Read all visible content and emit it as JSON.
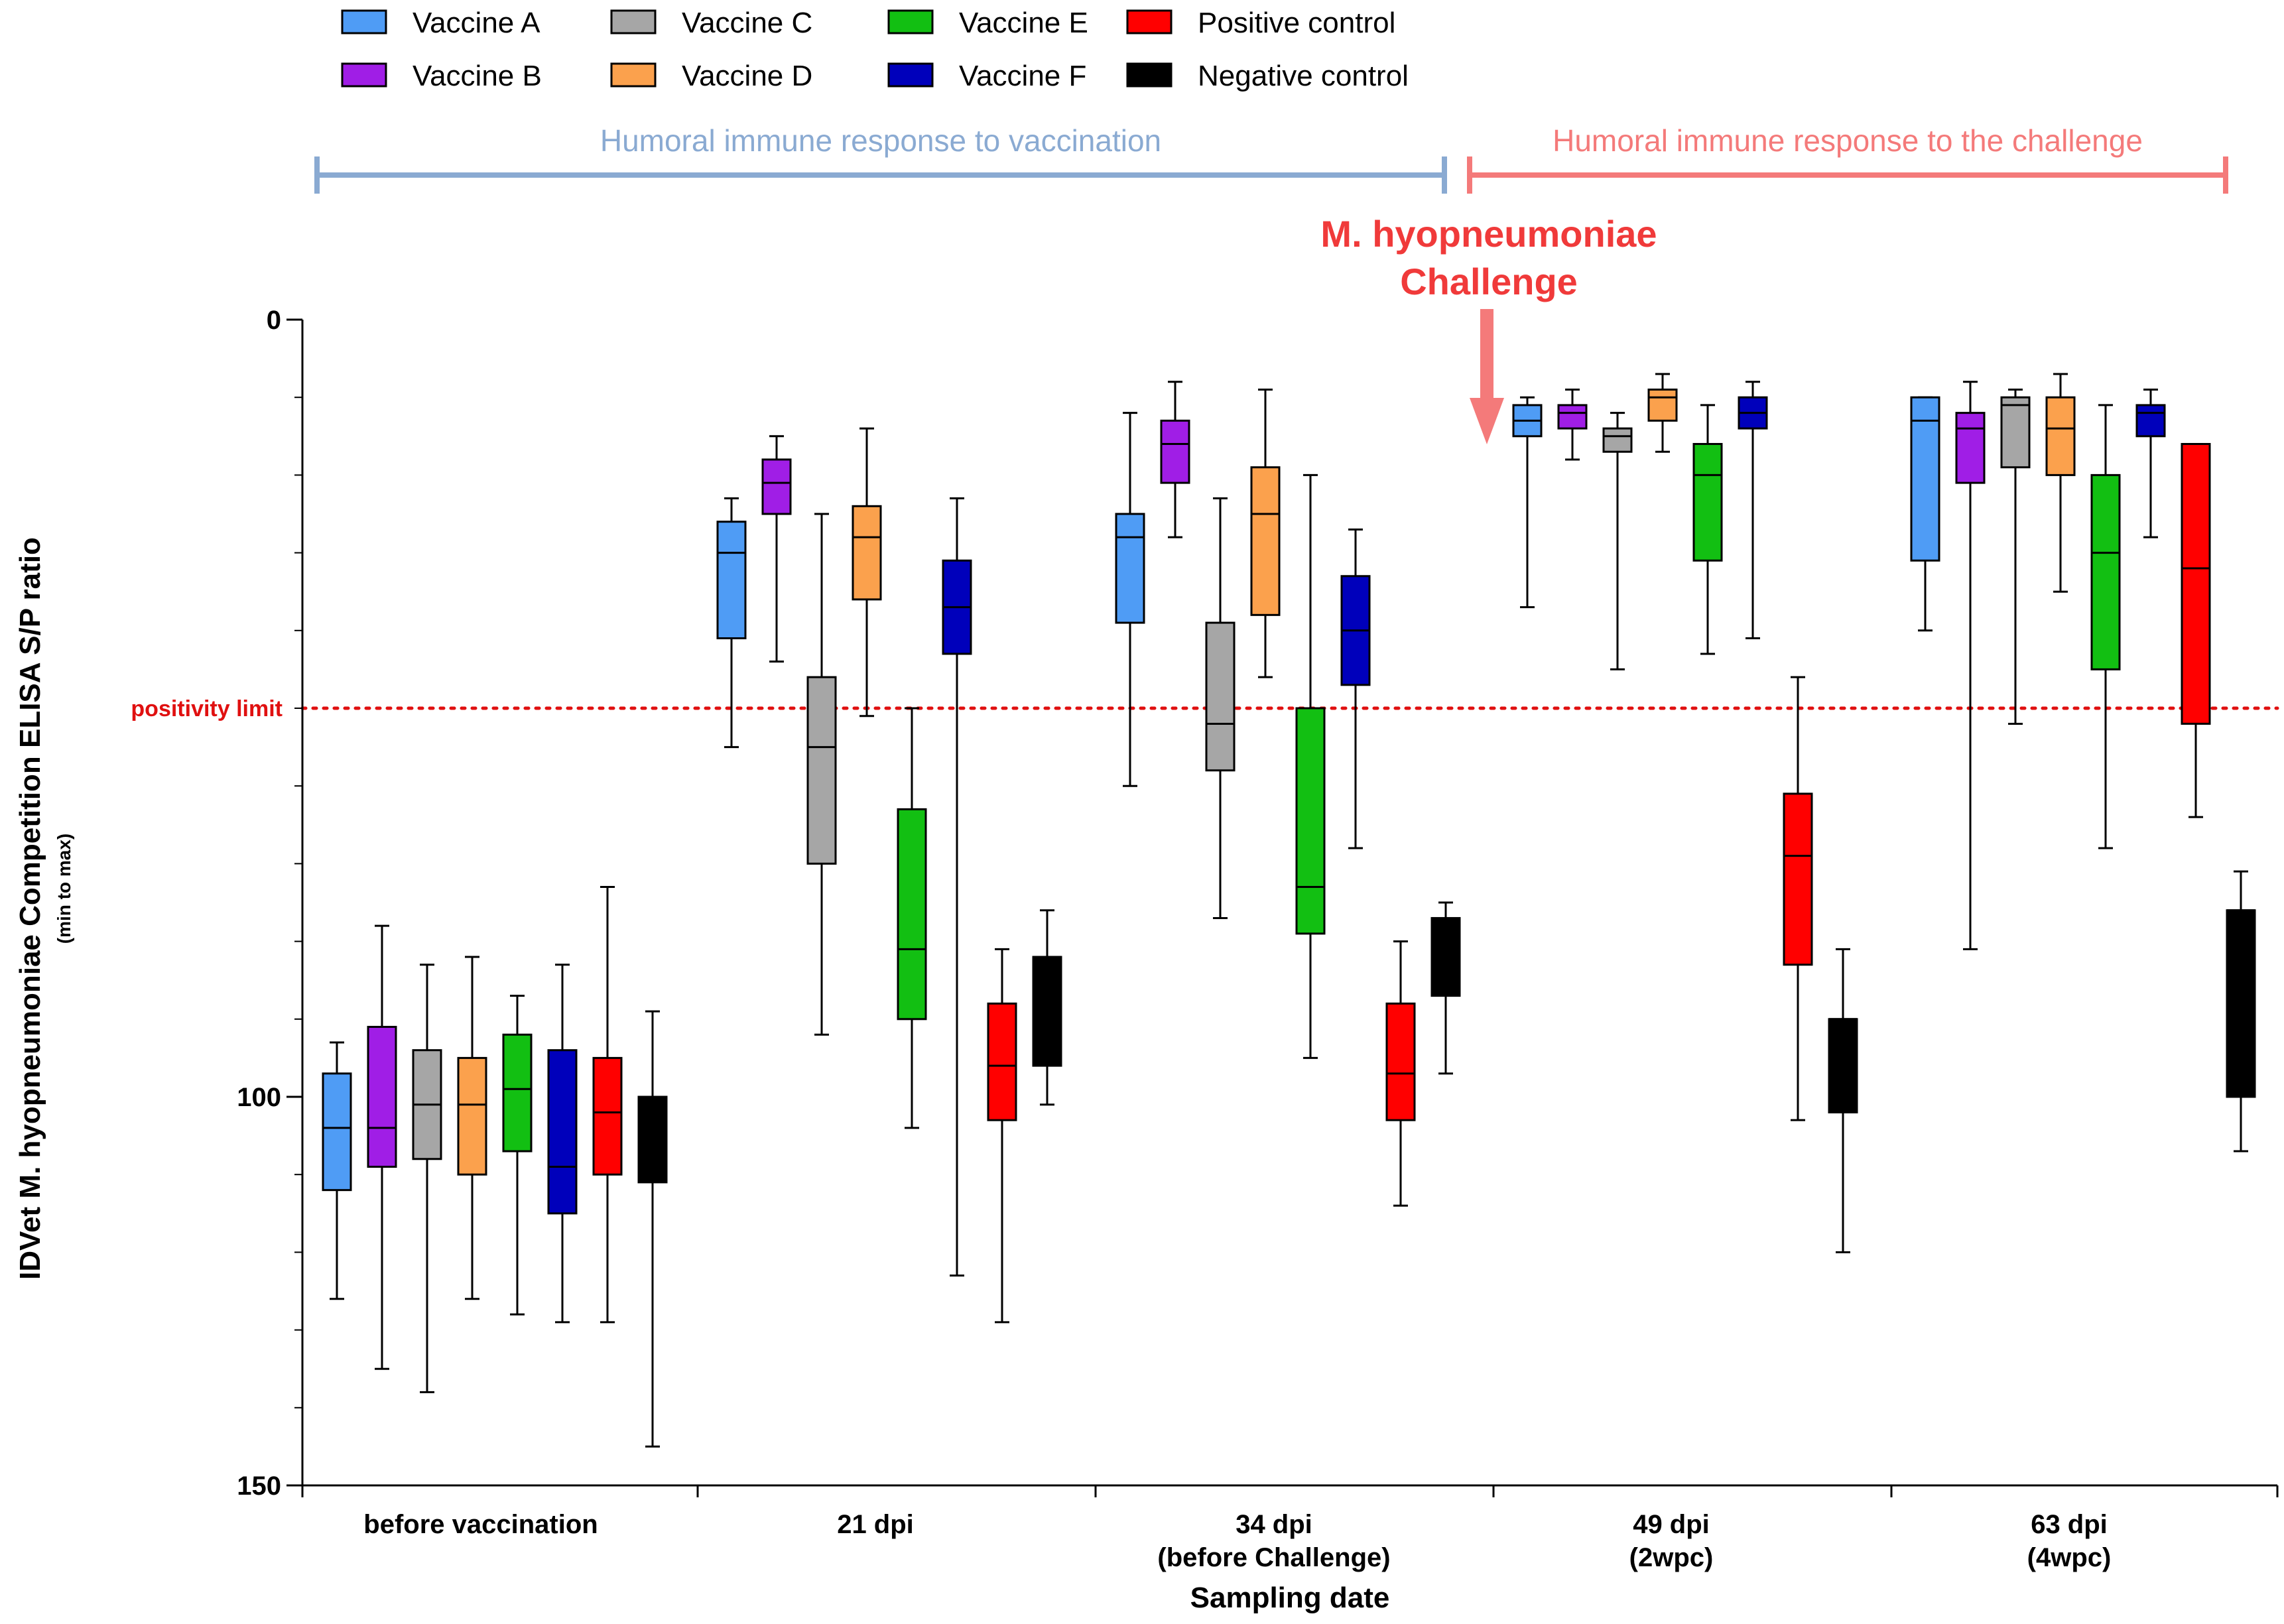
{
  "chart_data": {
    "type": "box",
    "title": "",
    "xlabel": "Sampling date",
    "ylabel": "IDVet  M. hyopneumoniae Competition ELISA S/P ratio",
    "ylabel_sub": "(min to max)",
    "ylim": [
      0,
      150
    ],
    "y_inverted": true,
    "y_ticks": [
      0,
      100,
      150
    ],
    "categories": [
      [
        "before vaccination"
      ],
      [
        "21 dpi"
      ],
      [
        "34 dpi",
        "(before Challenge)"
      ],
      [
        "49 dpi",
        "(2wpc)"
      ],
      [
        "63 dpi",
        "(4wpc)"
      ]
    ],
    "series": [
      {
        "name": "Vaccine A",
        "color": "#4f9cf5",
        "boxes": [
          [
            93,
            97,
            104,
            112,
            126
          ],
          [
            23,
            26,
            30,
            41,
            55
          ],
          [
            12,
            25,
            28,
            39,
            60
          ],
          [
            10,
            11,
            13,
            15,
            37
          ],
          [
            10,
            10,
            13,
            31,
            40
          ]
        ]
      },
      {
        "name": "Vaccine B",
        "color": "#a01ee6",
        "boxes": [
          [
            78,
            91,
            104,
            109,
            135
          ],
          [
            15,
            18,
            21,
            25,
            44
          ],
          [
            8,
            13,
            16,
            21,
            28
          ],
          [
            9,
            11,
            12,
            14,
            18
          ],
          [
            8,
            12,
            14,
            21,
            81
          ]
        ]
      },
      {
        "name": "Vaccine C",
        "color": "#a6a6a6",
        "boxes": [
          [
            83,
            94,
            101,
            108,
            138
          ],
          [
            25,
            46,
            55,
            70,
            92
          ],
          [
            23,
            39,
            52,
            58,
            77
          ],
          [
            12,
            14,
            15,
            17,
            45
          ],
          [
            9,
            10,
            11,
            19,
            52
          ]
        ]
      },
      {
        "name": "Vaccine D",
        "color": "#fba14d",
        "boxes": [
          [
            82,
            95,
            101,
            110,
            126
          ],
          [
            14,
            24,
            28,
            36,
            51
          ],
          [
            9,
            19,
            25,
            38,
            46
          ],
          [
            7,
            9,
            10,
            13,
            17
          ],
          [
            7,
            10,
            14,
            20,
            35
          ]
        ]
      },
      {
        "name": "Vaccine E",
        "color": "#12bf12",
        "boxes": [
          [
            87,
            92,
            99,
            107,
            128
          ],
          [
            50,
            63,
            81,
            90,
            104
          ],
          [
            20,
            50,
            73,
            79,
            95
          ],
          [
            11,
            16,
            20,
            31,
            43
          ],
          [
            11,
            20,
            30,
            45,
            68
          ]
        ]
      },
      {
        "name": "Vaccine F",
        "color": "#0000bb",
        "boxes": [
          [
            83,
            94,
            109,
            115,
            129
          ],
          [
            23,
            31,
            37,
            43,
            123
          ],
          [
            27,
            33,
            40,
            47,
            68
          ],
          [
            8,
            10,
            12,
            14,
            41
          ],
          [
            9,
            11,
            12,
            15,
            28
          ]
        ]
      },
      {
        "name": "Positive control",
        "color": "#ff0000",
        "boxes": [
          [
            73,
            95,
            102,
            110,
            129
          ],
          [
            81,
            88,
            96,
            103,
            129
          ],
          [
            80,
            88,
            97,
            103,
            114
          ],
          [
            46,
            61,
            69,
            83,
            103
          ],
          [
            18,
            16,
            32,
            52,
            64
          ]
        ]
      },
      {
        "name": "Negative control",
        "color": "#000000",
        "boxes": [
          [
            89,
            100,
            100,
            111,
            145
          ],
          [
            76,
            82,
            82,
            96,
            101
          ],
          [
            75,
            77,
            77,
            87,
            97
          ],
          [
            81,
            90,
            90,
            102,
            120
          ],
          [
            71,
            76,
            76,
            100,
            107
          ]
        ]
      }
    ],
    "reference_line": {
      "label": "positivity limit",
      "value": 50,
      "color": "#e01010",
      "style": "dotted"
    },
    "phases": [
      {
        "label": "Humoral immune response to vaccination",
        "color": "#8aaad2"
      },
      {
        "label": "Humoral immune response to the challenge",
        "color": "#f47a7a"
      }
    ],
    "annotation": {
      "lines": [
        "M. hyopneumoniae",
        "Challenge"
      ],
      "color": "#f03a3a",
      "arrow_color": "#f47a7a"
    },
    "legend": {
      "placement": "top-left",
      "columns": 4
    }
  }
}
